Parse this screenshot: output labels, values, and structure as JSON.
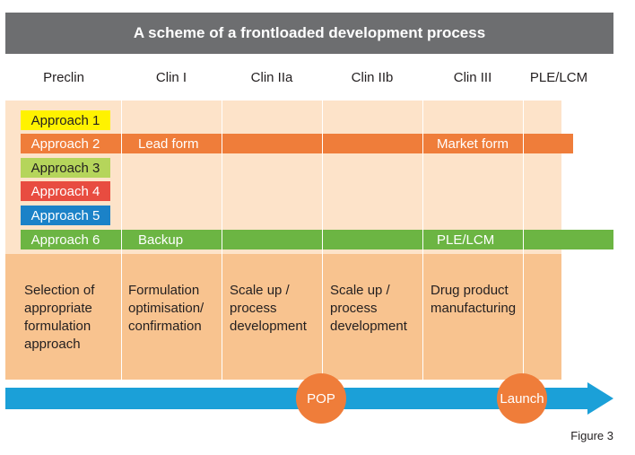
{
  "title": "A scheme of a frontloaded development process",
  "columns": [
    "Preclin",
    "Clin I",
    "Clin IIa",
    "Clin IIb",
    "Clin III",
    "PLE/LCM"
  ],
  "approaches": [
    {
      "label": "Approach 1",
      "color": "#fff200"
    },
    {
      "label": "Approach 2",
      "color": "#ef7d3a"
    },
    {
      "label": "Approach 3",
      "color": "#b5d55b"
    },
    {
      "label": "Approach 4",
      "color": "#e84c40"
    },
    {
      "label": "Approach 5",
      "color": "#1b82c8"
    },
    {
      "label": "Approach 6",
      "color": "#6cb543"
    }
  ],
  "band_orange": {
    "label_start": "Lead form",
    "label_end": "Market form",
    "color": "#ef7d3a"
  },
  "band_green": {
    "label_start": "Backup",
    "label_end": "PLE/LCM",
    "color": "#6cb543"
  },
  "activities": [
    "Selection of\nappropriate\nformulation\napproach",
    "Formulation\noptimisation/\nconfirmation",
    "Scale up /\nprocess\ndevelopment",
    "Scale up /\nprocess\ndevelopment",
    "Drug product\nmanufacturing"
  ],
  "milestones": {
    "pop": "POP",
    "launch": "Launch"
  },
  "caption": "Figure 3"
}
